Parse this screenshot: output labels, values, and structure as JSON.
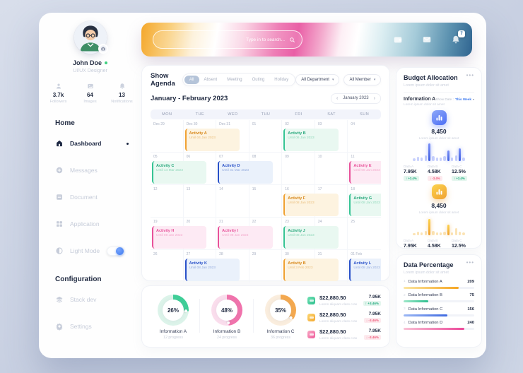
{
  "palette": {
    "accent_blue": "#4c6ef5",
    "toggle_blue": "#3f7bf0",
    "event_orange": "#f0a132",
    "event_green": "#2fbf8f",
    "event_blue": "#2850c8",
    "event_pink": "#e8529a",
    "badge_up_green": "#1fa97d",
    "badge_down_red": "#ef5b7b"
  },
  "sidebar": {
    "user": {
      "name": "John Doe",
      "role": "UI/UX Designer"
    },
    "stats": [
      {
        "icon": "person-icon",
        "value": "3.7k",
        "label": "Followers"
      },
      {
        "icon": "image-icon",
        "value": "64",
        "label": "Images"
      },
      {
        "icon": "bell-icon",
        "value": "13",
        "label": "Notifications"
      }
    ],
    "sections": [
      {
        "title": "Home",
        "items": [
          {
            "icon": "home-icon",
            "label": "Dashboard",
            "active": true
          },
          {
            "icon": "chat-plus-icon",
            "label": "Messages"
          },
          {
            "icon": "document-icon",
            "label": "Document"
          },
          {
            "icon": "grid-icon",
            "label": "Application"
          },
          {
            "icon": "contrast-icon",
            "label": "Light Mode",
            "toggle": true
          }
        ]
      },
      {
        "title": "Configuration",
        "items": [
          {
            "icon": "stack-icon",
            "label": "Stack dev"
          },
          {
            "icon": "gear-icon",
            "label": "Settings"
          }
        ]
      }
    ]
  },
  "topbar": {
    "search_placeholder": "Type in to search...",
    "action_icons": [
      "wallet-icon",
      "mail-icon",
      "bell-icon"
    ],
    "notification_count": "7"
  },
  "agenda": {
    "title": "Show Agenda",
    "filters": [
      {
        "label": "All",
        "active": true
      },
      {
        "label": "Absent"
      },
      {
        "label": "Meeting"
      },
      {
        "label": "Outing"
      },
      {
        "label": "Holiday"
      }
    ],
    "dropdowns": [
      {
        "label": "All Department"
      },
      {
        "label": "All Member"
      }
    ],
    "month_title": "January - February 2023",
    "pager_label": "January 2023",
    "pager_prev": "‹",
    "pager_next": "›",
    "weekdays": [
      "MON",
      "TUE",
      "WED",
      "THU",
      "FRI",
      "SAT",
      "SUN"
    ],
    "weeks": [
      {
        "dates": [
          "Dec 29",
          "Dec 30",
          "Dec 31",
          "01",
          "02",
          "03",
          "04"
        ],
        "events": [
          {
            "col": 1,
            "color": "orange",
            "title": "Activity A",
            "until": "Until 04 Jan 2023"
          },
          {
            "col": 4,
            "color": "green",
            "title": "Activity B",
            "until": "Until 06 Jan 2023"
          }
        ]
      },
      {
        "dates": [
          "05",
          "06",
          "07",
          "08",
          "09",
          "10",
          "11"
        ],
        "events": [
          {
            "col": 0,
            "color": "green",
            "title": "Activity C",
            "until": "Until 14 Mar 2023"
          },
          {
            "col": 2,
            "color": "blue",
            "title": "Activity D",
            "until": "Until 31 Mar 2023"
          },
          {
            "col": 6,
            "color": "pink",
            "title": "Activity E",
            "until": "Until 06 Jan 2023"
          }
        ]
      },
      {
        "dates": [
          "12",
          "13",
          "14",
          "15",
          "16",
          "17",
          "18"
        ],
        "events": [
          {
            "col": 4,
            "color": "orange",
            "title": "Activity F",
            "until": "Until 08 Jan 2023"
          },
          {
            "col": 6,
            "color": "green",
            "title": "Activity G",
            "until": "Until 08 Jan 2023"
          }
        ]
      },
      {
        "dates": [
          "19",
          "20",
          "21",
          "22",
          "23",
          "24",
          "25"
        ],
        "events": [
          {
            "col": 0,
            "color": "pink",
            "title": "Activity H",
            "until": "Until 08 Jan 2023"
          },
          {
            "col": 2,
            "color": "pink",
            "title": "Activity I",
            "until": "Until 08 Jan 2023"
          },
          {
            "col": 4,
            "color": "green",
            "title": "Activity J",
            "until": "Until 08 Jan 2023"
          }
        ]
      },
      {
        "dates": [
          "26",
          "27",
          "28",
          "29",
          "30",
          "31",
          "01 Feb"
        ],
        "events": [
          {
            "col": 1,
            "color": "blue",
            "title": "Activity K",
            "until": "Until 08 Jan 2023"
          },
          {
            "col": 4,
            "color": "orange",
            "title": "Activity B",
            "until": "Until 3 Feb 2023"
          },
          {
            "col": 6,
            "color": "blue",
            "title": "Activity L",
            "until": "Until 08 Jan 2023"
          }
        ]
      }
    ]
  },
  "summary": {
    "donuts": [
      {
        "percent": 26,
        "label": "Information A",
        "sub": "12 progress",
        "color": "green"
      },
      {
        "percent": 48,
        "label": "Information B",
        "sub": "24 progress",
        "color": "pink"
      },
      {
        "percent": 35,
        "label": "Information C",
        "sub": "36 progress",
        "color": "orange"
      }
    ],
    "transactions": [
      {
        "icon_color": "green",
        "amount": "$22,880.50",
        "sub": "Lorem aliquam class cras",
        "value": "7.95K",
        "change": "+3.46%",
        "direction": "up"
      },
      {
        "icon_color": "yellow",
        "amount": "$22,880.50",
        "sub": "Lorem aliquam class cras",
        "value": "7.95K",
        "change": "-3.46%",
        "direction": "down"
      },
      {
        "icon_color": "pink",
        "amount": "$22,880.50",
        "sub": "Lorem aliquam class cras",
        "value": "7.95K",
        "change": "-3.46%",
        "direction": "down"
      }
    ]
  },
  "budget": {
    "title": "Budget Allocation",
    "subtitle": "Lorem ipsum dolor sit amet",
    "section_label": "Information A",
    "show_date_label": "Show Date :",
    "show_date_value": "This Week",
    "section_sub": "Lorem ipsum dolor sit amet",
    "blocks": [
      {
        "color": "blue",
        "icon": "bar-chart-icon",
        "value": "8,450",
        "caption": "Lorem ipsum dolor sit amet",
        "bars": [
          16,
          24,
          18,
          30,
          96,
          26,
          20,
          18,
          26,
          58,
          20,
          30,
          70,
          18
        ],
        "stats": [
          {
            "label": "Data A",
            "value": "7.95K",
            "change": "+3.4%",
            "direction": "up"
          },
          {
            "label": "Data B",
            "value": "4.58K",
            "change": "-3.4%",
            "direction": "down"
          },
          {
            "label": "Data C",
            "value": "12.5%",
            "change": "+3.4%",
            "direction": "up"
          }
        ]
      },
      {
        "color": "yellow",
        "icon": "bar-chart-icon",
        "value": "8,450",
        "caption": "Lorem ipsum dolor sit amet",
        "bars": [
          12,
          20,
          16,
          24,
          90,
          22,
          16,
          14,
          20,
          56,
          16,
          40,
          20,
          14
        ],
        "stats": [
          {
            "label": "Data A",
            "value": "7.95K",
            "change": "-3.4%",
            "direction": "down"
          },
          {
            "label": "Data B",
            "value": "4.58K",
            "change": "-3.4%",
            "direction": "down"
          },
          {
            "label": "Data C",
            "value": "12.5%",
            "change": "+3.4%",
            "direction": "up"
          }
        ]
      }
    ]
  },
  "percentage": {
    "title": "Data Percentage",
    "subtitle": "Lorem ipsum dolor sit amet",
    "rows": [
      {
        "index": "1",
        "label": "Data Information A",
        "value": "209",
        "percent": 78,
        "color": "orange"
      },
      {
        "index": "2",
        "label": "Data Information B",
        "value": "75",
        "percent": 35,
        "color": "green"
      },
      {
        "index": "3",
        "label": "Data Information C",
        "value": "156",
        "percent": 62,
        "color": "blue"
      },
      {
        "index": "4",
        "label": "Data Information D",
        "value": "240",
        "percent": 86,
        "color": "pink"
      }
    ]
  }
}
